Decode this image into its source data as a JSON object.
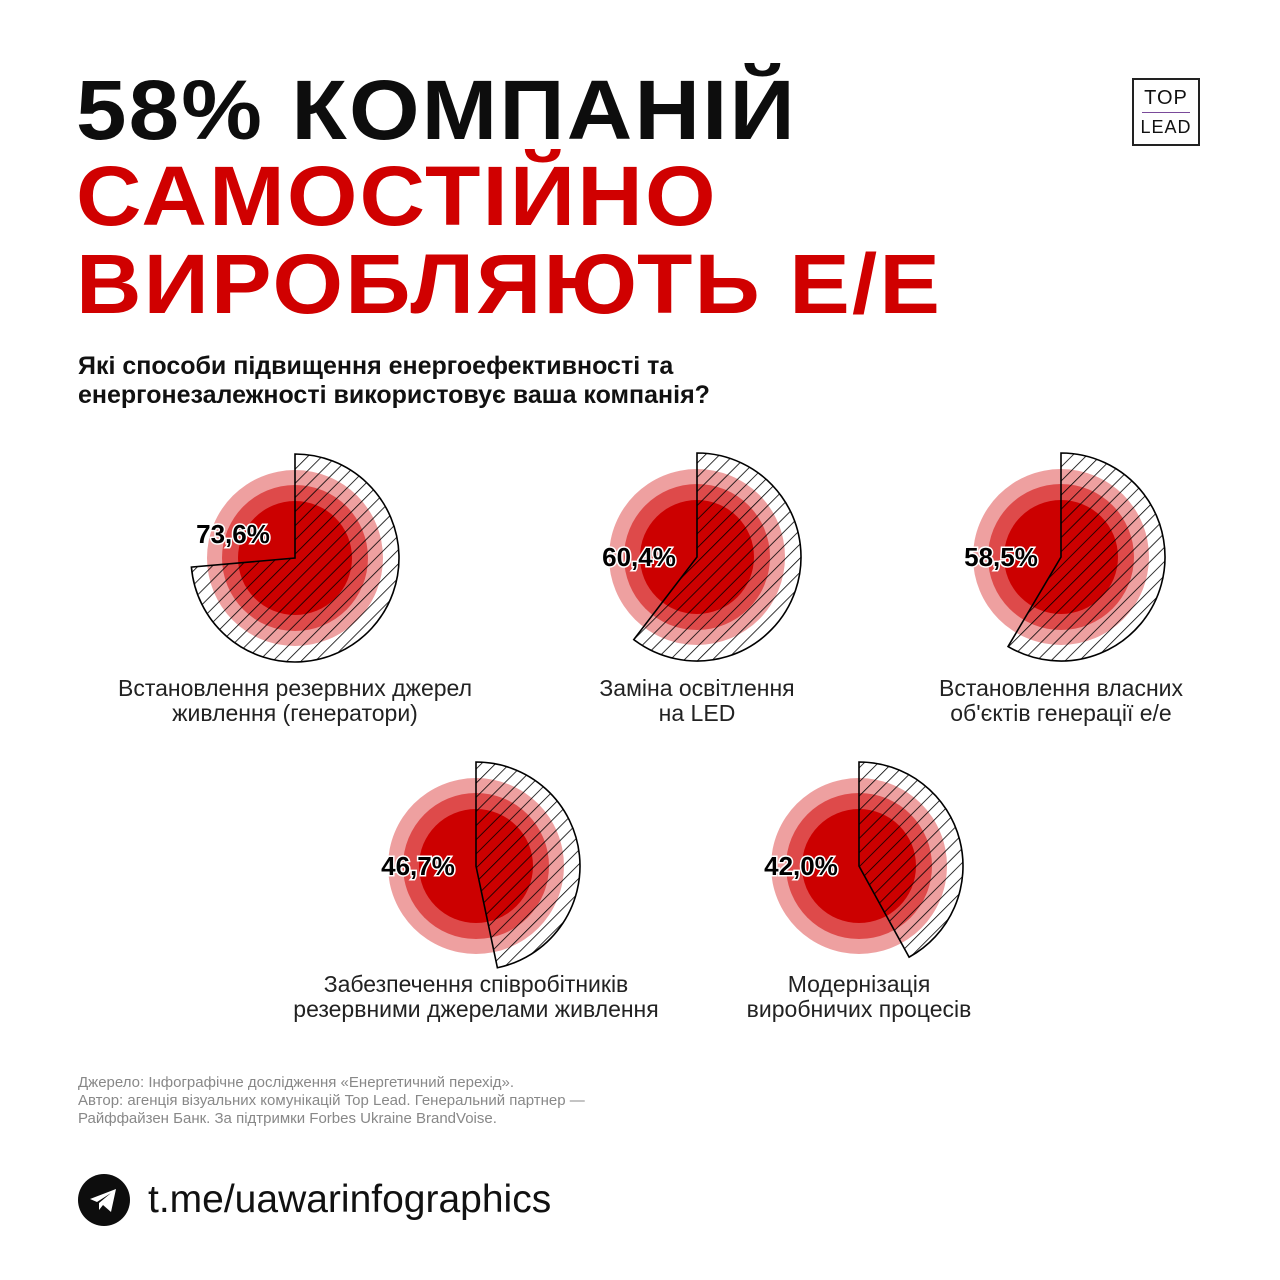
{
  "title": {
    "line1": "58% КОМПАНІЙ",
    "line2": "САМОСТІЙНО",
    "line3": "ВИРОБЛЯЮТЬ Е/Е"
  },
  "logo": {
    "line1": "TOP",
    "line2": "LEAD"
  },
  "question_line1": "Які способи підвищення енергоефективності та",
  "question_line2": "енергонезалежності використовує ваша компанія?",
  "chart_data": {
    "type": "pie",
    "unit": "%",
    "colors": {
      "ring_outer": "#eea0a0",
      "ring_mid": "#de4a4a",
      "ring_inner": "#cc0000",
      "hatch": "#000000"
    },
    "items": [
      {
        "label_line1": "Встановлення резервних джерел",
        "label_line2": "живлення (генератори)",
        "value": 73.6,
        "value_label": "73,6%"
      },
      {
        "label_line1": "Заміна освітлення",
        "label_line2": "на LED",
        "value": 60.4,
        "value_label": "60,4%"
      },
      {
        "label_line1": "Встановлення власних",
        "label_line2": "об'єктів генерації е/е",
        "value": 58.5,
        "value_label": "58,5%"
      },
      {
        "label_line1": "Забезпечення співробітників",
        "label_line2": "резервними джерелами живлення",
        "value": 46.7,
        "value_label": "46,7%"
      },
      {
        "label_line1": "Модернізація",
        "label_line2": "виробничих процесів",
        "value": 42.0,
        "value_label": "42,0%"
      }
    ]
  },
  "source": {
    "line1": "Джерело: Інфографічне дослідження «Енергетичний перехід».",
    "line2": "Автор: агенція візуальних комунікацій Top Lead. Генеральний партнер —",
    "line3": "Райффайзен Банк. За підтримки Forbes Ukraine BrandVoise."
  },
  "footer": {
    "icon": "telegram-icon",
    "link": "t.me/uawarinfographics"
  }
}
